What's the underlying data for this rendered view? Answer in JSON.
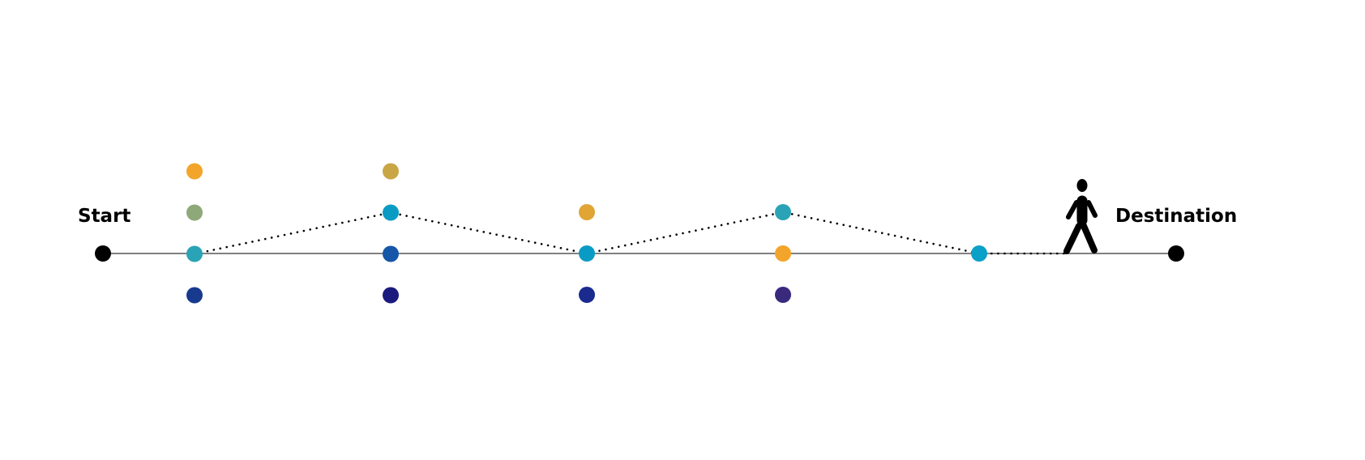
{
  "labels": {
    "start": "Start",
    "destination": "Destination"
  },
  "colors": {
    "baseline": "#808080",
    "endpoint": "#000000",
    "path": "#000000",
    "walker": "#000000"
  },
  "walker_icon": "pedestrian-walking-icon",
  "stages": [
    {
      "dots": [
        "#f2a52a",
        "#8fa87a",
        "#2ba3b6",
        "#173a8e"
      ],
      "selected": 2
    },
    {
      "dots": [
        "#c9a545",
        "#0a9bc4",
        "#1556a8",
        "#1a1a7e"
      ],
      "selected": 1
    },
    {
      "dots": [
        "#e0a535",
        "#0a9bc4",
        "#1a2a8e"
      ],
      "selected": 1
    },
    {
      "dots": [
        "#2ba3b6",
        "#f2a52a",
        "#3a2a7e"
      ],
      "selected": 0
    },
    {
      "dots": [
        "#0aa0c8"
      ],
      "selected": 0
    }
  ]
}
